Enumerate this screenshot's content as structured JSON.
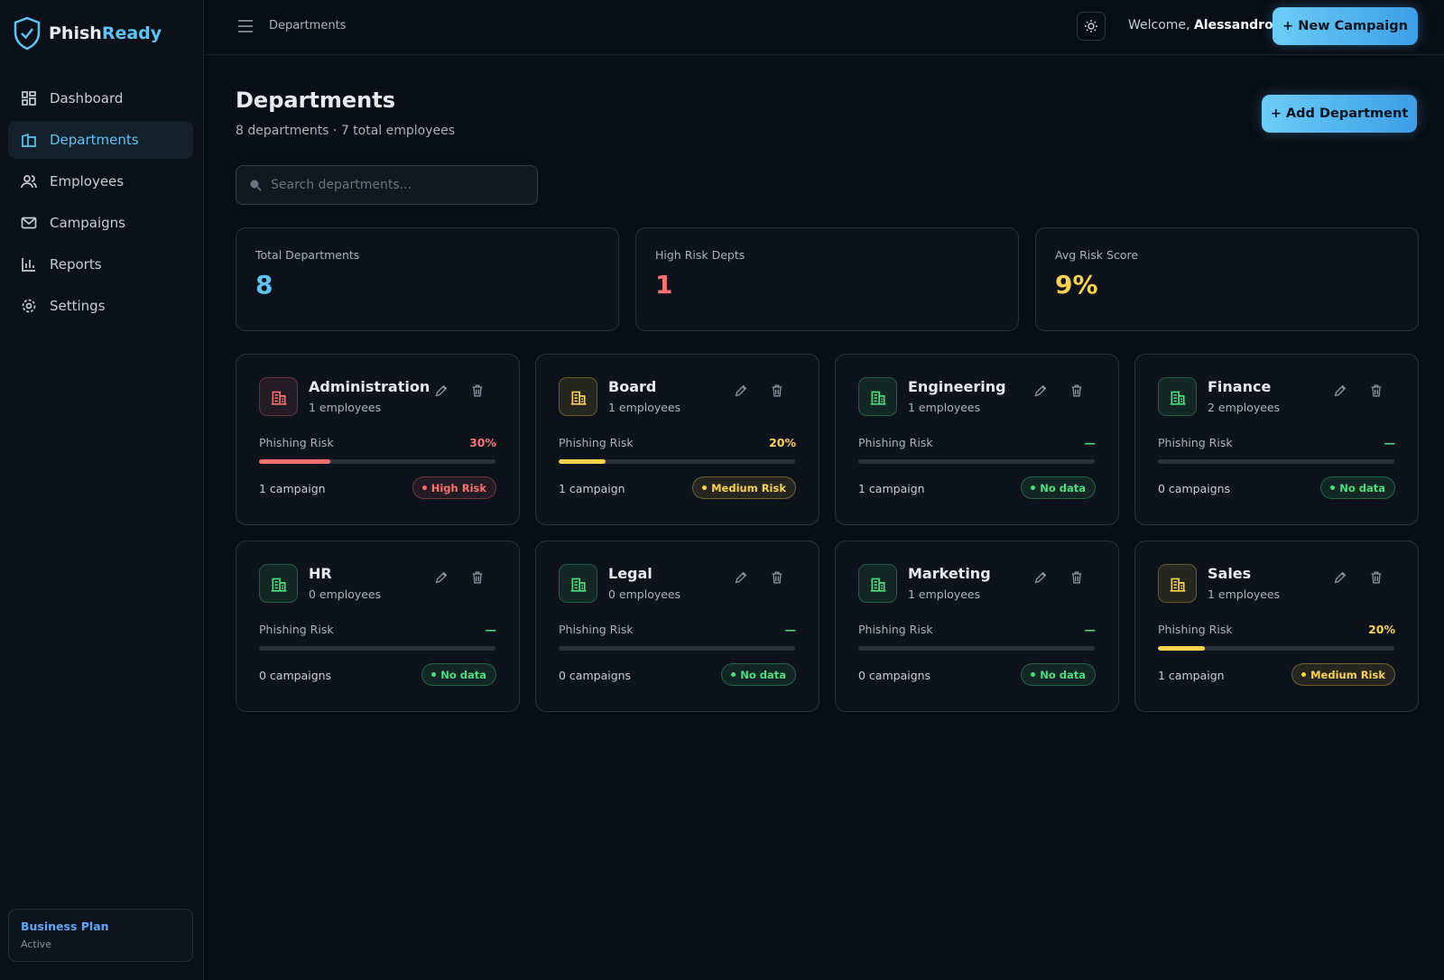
{
  "sidebar": {
    "brand_first": "Phish",
    "brand_second": "Ready",
    "nav": [
      "Dashboard",
      "Departments",
      "Employees",
      "Campaigns",
      "Reports",
      "Settings"
    ],
    "plan": {
      "name": "Business Plan",
      "status": "Active"
    }
  },
  "topbar": {
    "breadcrumb": "Departments",
    "welcome": "Welcome,",
    "user": "Alessandro",
    "button": "+ New Campaign"
  },
  "header": {
    "title": "Departments",
    "subtitle": "8 departments · 7 total employees",
    "button": "+ Add Department",
    "search_placeholder": "Search departments..."
  },
  "stats": [
    {
      "label": "Total Departments",
      "value": "8",
      "color": "#5ec4f5"
    },
    {
      "label": "High Risk Depts",
      "value": "1",
      "color": "#f87171"
    },
    {
      "label": "Avg Risk Score",
      "value": "9%",
      "color": "#fcd34d"
    }
  ],
  "departments": [
    {
      "name": "Administration",
      "employees": "1 employees",
      "risk_label": "Phishing Risk",
      "risk": {
        "value": 30,
        "label": "30%"
      },
      "campaigns": "1 campaign",
      "badge": "High Risk",
      "color": "#f87171"
    },
    {
      "name": "Board",
      "employees": "1 employees",
      "risk_label": "Phishing Risk",
      "risk": {
        "value": 20,
        "label": "20%"
      },
      "campaigns": "1 campaign",
      "badge": "Medium Risk",
      "color": "#fcd34d"
    },
    {
      "name": "Engineering",
      "employees": "1 employees",
      "risk_label": "Phishing Risk",
      "risk": "—",
      "campaigns": "1 campaign",
      "badge": "No data",
      "color": "#4ade80"
    },
    {
      "name": "Finance",
      "employees": "2 employees",
      "risk_label": "Phishing Risk",
      "risk": "—",
      "campaigns": "0 campaigns",
      "badge": "No data",
      "color": "#4ade80"
    },
    {
      "name": "HR",
      "employees": "0 employees",
      "risk_label": "Phishing Risk",
      "risk": "—",
      "campaigns": "0 campaigns",
      "badge": "No data",
      "color": "#4ade80"
    },
    {
      "name": "Legal",
      "employees": "0 employees",
      "risk_label": "Phishing Risk",
      "risk": "—",
      "campaigns": "0 campaigns",
      "badge": "No data",
      "color": "#4ade80"
    },
    {
      "name": "Marketing",
      "employees": "1 employees",
      "risk_label": "Phishing Risk",
      "risk": "—",
      "campaigns": "0 campaigns",
      "badge": "No data",
      "color": "#4ade80"
    },
    {
      "name": "Sales",
      "employees": "1 employees",
      "risk_label": "Phishing Risk",
      "risk": {
        "value": 20,
        "label": "20%"
      },
      "campaigns": "1 campaign",
      "badge": "Medium Risk",
      "color": "#fcd34d"
    }
  ]
}
